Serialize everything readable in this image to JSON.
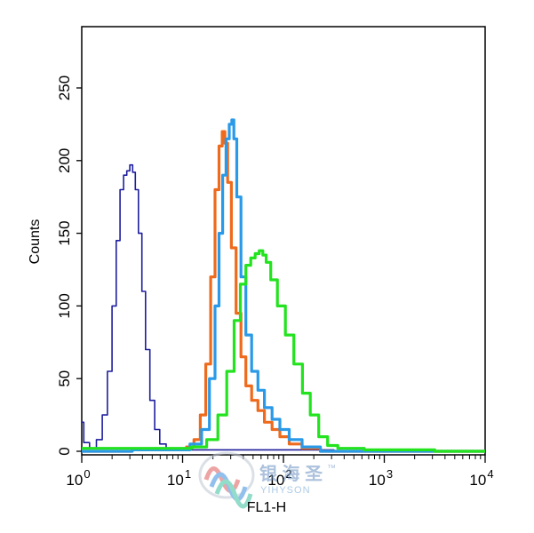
{
  "chart_data": {
    "type": "line",
    "title": "",
    "xlabel": "FL1-H",
    "ylabel": "Counts",
    "x_scale": "log",
    "xlim": [
      1,
      10000
    ],
    "ylim": [
      0,
      290
    ],
    "x_ticks": [
      {
        "value": 1,
        "base": "10",
        "exp": "0"
      },
      {
        "value": 10,
        "base": "10",
        "exp": "1"
      },
      {
        "value": 100,
        "base": "10",
        "exp": "2"
      },
      {
        "value": 1000,
        "base": "10",
        "exp": "3"
      },
      {
        "value": 10000,
        "base": "10",
        "exp": "4"
      }
    ],
    "y_ticks": [
      "0",
      "50",
      "100",
      "150",
      "200",
      "250"
    ],
    "grid": false,
    "legend": "none",
    "series": [
      {
        "color": "#1e1e9e",
        "points": [
          [
            1.0,
            20
          ],
          [
            1.1,
            6
          ],
          [
            1.3,
            2
          ],
          [
            1.5,
            8
          ],
          [
            1.7,
            25
          ],
          [
            1.9,
            55
          ],
          [
            2.1,
            100
          ],
          [
            2.3,
            145
          ],
          [
            2.5,
            180
          ],
          [
            2.7,
            190
          ],
          [
            2.9,
            193
          ],
          [
            3.1,
            197
          ],
          [
            3.3,
            192
          ],
          [
            3.5,
            180
          ],
          [
            3.8,
            150
          ],
          [
            4.1,
            110
          ],
          [
            4.5,
            70
          ],
          [
            5.0,
            35
          ],
          [
            5.6,
            15
          ],
          [
            6.3,
            5
          ],
          [
            7.5,
            2
          ],
          [
            10,
            1
          ],
          [
            100,
            1
          ],
          [
            1000,
            0
          ],
          [
            10000,
            0
          ]
        ]
      },
      {
        "color": "#ee6a1c",
        "points": [
          [
            1.0,
            0
          ],
          [
            10,
            1
          ],
          [
            12,
            3
          ],
          [
            14,
            8
          ],
          [
            16,
            25
          ],
          [
            18,
            60
          ],
          [
            20,
            120
          ],
          [
            22,
            180
          ],
          [
            24,
            210
          ],
          [
            25.5,
            220
          ],
          [
            27,
            212
          ],
          [
            29,
            185
          ],
          [
            32,
            140
          ],
          [
            36,
            95
          ],
          [
            40,
            65
          ],
          [
            45,
            45
          ],
          [
            52,
            35
          ],
          [
            60,
            28
          ],
          [
            70,
            20
          ],
          [
            85,
            15
          ],
          [
            100,
            10
          ],
          [
            130,
            5
          ],
          [
            180,
            2
          ],
          [
            300,
            0
          ],
          [
            10000,
            0
          ]
        ]
      },
      {
        "color": "#2a9ae8",
        "points": [
          [
            1.0,
            0
          ],
          [
            10,
            1
          ],
          [
            14,
            5
          ],
          [
            17,
            15
          ],
          [
            20,
            50
          ],
          [
            22,
            100
          ],
          [
            24,
            150
          ],
          [
            26,
            190
          ],
          [
            28,
            215
          ],
          [
            30,
            225
          ],
          [
            31.5,
            228
          ],
          [
            33,
            215
          ],
          [
            36,
            175
          ],
          [
            40,
            120
          ],
          [
            45,
            80
          ],
          [
            52,
            55
          ],
          [
            60,
            42
          ],
          [
            70,
            30
          ],
          [
            85,
            22
          ],
          [
            100,
            15
          ],
          [
            130,
            8
          ],
          [
            180,
            3
          ],
          [
            300,
            0
          ],
          [
            10000,
            0
          ]
        ]
      },
      {
        "color": "#22e31e",
        "points": [
          [
            1.0,
            2
          ],
          [
            5,
            2
          ],
          [
            10,
            2
          ],
          [
            15,
            3
          ],
          [
            20,
            8
          ],
          [
            25,
            25
          ],
          [
            30,
            55
          ],
          [
            35,
            90
          ],
          [
            40,
            115
          ],
          [
            45,
            128
          ],
          [
            50,
            133
          ],
          [
            55,
            136
          ],
          [
            60,
            138
          ],
          [
            65,
            135
          ],
          [
            70,
            130
          ],
          [
            80,
            118
          ],
          [
            95,
            100
          ],
          [
            115,
            80
          ],
          [
            140,
            60
          ],
          [
            170,
            40
          ],
          [
            200,
            25
          ],
          [
            250,
            10
          ],
          [
            300,
            4
          ],
          [
            400,
            2
          ],
          [
            1000,
            1
          ],
          [
            10000,
            0
          ]
        ]
      }
    ]
  },
  "watermark": {
    "brand_cn": "银 海 圣",
    "brand_en": "YIHYSON",
    "trademark": "™",
    "colors": [
      "#e05a5a",
      "#3a8ee0",
      "#3ac0a0"
    ]
  }
}
